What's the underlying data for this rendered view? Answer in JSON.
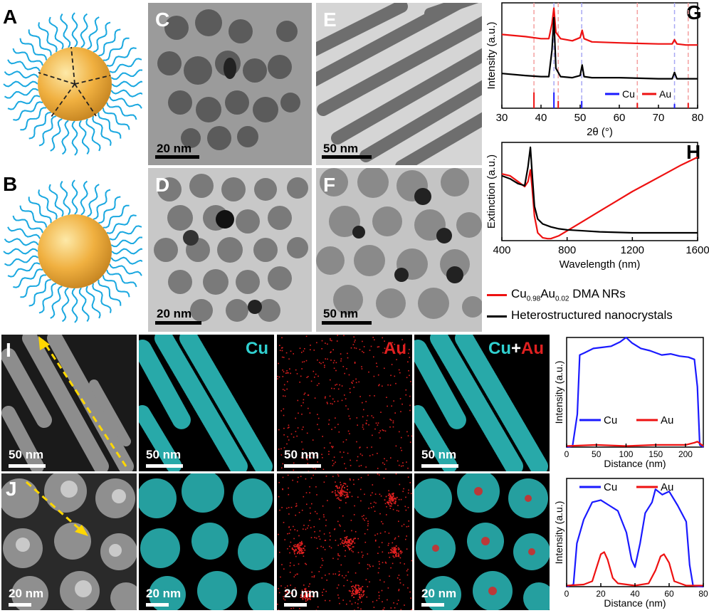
{
  "figure": {
    "panels": {
      "A": "A",
      "B": "B",
      "C": "C",
      "D": "D",
      "E": "E",
      "F": "F",
      "G": "G",
      "H": "H",
      "I": "I",
      "J": "J"
    },
    "scalebars": {
      "C": "20 nm",
      "D": "20 nm",
      "E": "50 nm",
      "F": "50 nm",
      "I1": "50 nm",
      "I2": "50 nm",
      "I3": "50 nm",
      "I4": "50 nm",
      "J1": "20 nm",
      "J2": "20 nm",
      "J3": "20 nm",
      "J4": "20 nm"
    },
    "map_labels": {
      "cu": "Cu",
      "au": "Au",
      "plus": "+"
    },
    "legend_bottom": {
      "red_sub_base": "Cu",
      "red_sub1": "0.98",
      "red_mid": "Au",
      "red_sub2": "0.02",
      "red_suffix": " DMA NRs",
      "black": "Heterostructured nanocrystals"
    },
    "colors": {
      "cu": "#1a1aff",
      "au": "#ee1111",
      "cu_map": "#30d0d0",
      "au_map": "#e02020",
      "particle": "#f2b040",
      "ligand": "#1aa8e0"
    }
  },
  "chart_data": [
    {
      "id": "G",
      "type": "line",
      "xlabel": "2θ (°)",
      "ylabel": "Intensity (a.u.)",
      "xlim": [
        30,
        80
      ],
      "xticks": [
        30,
        40,
        50,
        60,
        70,
        80
      ],
      "legend": [
        "Cu",
        "Au"
      ],
      "legend_position": "bottom-right",
      "series": [
        {
          "name": "red pattern",
          "color": "#ee1111",
          "x": [
            30,
            36,
            40,
            42,
            42.8,
            43.3,
            43.8,
            45,
            48,
            50,
            50.5,
            51,
            53,
            60,
            70,
            73.5,
            74.1,
            74.7,
            77,
            80
          ],
          "y": [
            0.7,
            0.68,
            0.66,
            0.66,
            0.8,
            0.95,
            0.72,
            0.66,
            0.64,
            0.67,
            0.74,
            0.66,
            0.63,
            0.62,
            0.61,
            0.61,
            0.65,
            0.61,
            0.6,
            0.6
          ]
        },
        {
          "name": "black pattern",
          "color": "#000000",
          "x": [
            30,
            36,
            40,
            42,
            42.8,
            43.3,
            43.8,
            45,
            48,
            50,
            50.5,
            51,
            53,
            60,
            70,
            73.5,
            74.1,
            74.7,
            77,
            80
          ],
          "y": [
            0.33,
            0.31,
            0.3,
            0.3,
            0.55,
            0.86,
            0.38,
            0.3,
            0.29,
            0.31,
            0.41,
            0.3,
            0.29,
            0.29,
            0.28,
            0.28,
            0.34,
            0.28,
            0.28,
            0.28
          ]
        }
      ],
      "reference_cu": [
        43.3,
        50.4,
        74.1
      ],
      "reference_au": [
        38.2,
        44.4,
        64.6,
        77.6
      ],
      "reference_cu_heights": [
        0.15,
        0.07,
        0.04
      ],
      "reference_au_heights": [
        0.15,
        0.07,
        0.05,
        0.05
      ]
    },
    {
      "id": "H",
      "type": "line",
      "xlabel": "Wavelength (nm)",
      "ylabel": "Extinction (a.u.)",
      "xlim": [
        400,
        1600
      ],
      "xticks": [
        400,
        800,
        1200,
        1600
      ],
      "series": [
        {
          "name": "Cu0.98Au0.02 DMA NRs",
          "color": "#ee1111",
          "x": [
            400,
            450,
            500,
            540,
            560,
            575,
            585,
            600,
            620,
            650,
            680,
            700,
            750,
            800,
            900,
            1000,
            1100,
            1200,
            1300,
            1400,
            1500,
            1600
          ],
          "y": [
            0.68,
            0.66,
            0.6,
            0.55,
            0.6,
            0.72,
            0.55,
            0.25,
            0.08,
            0.03,
            0.02,
            0.02,
            0.05,
            0.1,
            0.2,
            0.3,
            0.4,
            0.5,
            0.59,
            0.68,
            0.77,
            0.85
          ]
        },
        {
          "name": "Heterostructured nanocrystals",
          "color": "#000000",
          "x": [
            400,
            450,
            500,
            540,
            560,
            575,
            585,
            600,
            620,
            650,
            700,
            750,
            800,
            900,
            1000,
            1200,
            1400,
            1600
          ],
          "y": [
            0.66,
            0.63,
            0.58,
            0.56,
            0.75,
            0.95,
            0.7,
            0.35,
            0.22,
            0.17,
            0.14,
            0.12,
            0.11,
            0.1,
            0.09,
            0.08,
            0.08,
            0.08
          ]
        }
      ]
    },
    {
      "id": "I-profile",
      "type": "line",
      "xlabel": "Distance (nm)",
      "ylabel": "Intensity (a.u.)",
      "xlim": [
        0,
        230
      ],
      "xticks": [
        0,
        50,
        100,
        150,
        200
      ],
      "legend": [
        "Cu",
        "Au"
      ],
      "series": [
        {
          "name": "Cu",
          "color": "#1a1aff",
          "x": [
            0,
            10,
            18,
            22,
            30,
            45,
            60,
            75,
            90,
            100,
            110,
            125,
            140,
            160,
            175,
            190,
            205,
            215,
            220,
            224,
            230
          ],
          "y": [
            0,
            0.01,
            0.3,
            0.84,
            0.86,
            0.9,
            0.91,
            0.92,
            0.96,
            1.0,
            0.95,
            0.9,
            0.88,
            0.84,
            0.85,
            0.83,
            0.82,
            0.8,
            0.55,
            0.02,
            0
          ]
        },
        {
          "name": "Au",
          "color": "#ee1111",
          "x": [
            0,
            50,
            100,
            150,
            200,
            215,
            220,
            230
          ],
          "y": [
            0.01,
            0.02,
            0.01,
            0.02,
            0.02,
            0.04,
            0.05,
            0.01
          ]
        }
      ]
    },
    {
      "id": "J-profile",
      "type": "line",
      "xlabel": "Distance (nm)",
      "ylabel": "Intensity (a.u.)",
      "xlim": [
        0,
        80
      ],
      "xticks": [
        0,
        20,
        40,
        60,
        80
      ],
      "legend": [
        "Cu",
        "Au"
      ],
      "series": [
        {
          "name": "Cu",
          "color": "#1a1aff",
          "x": [
            0,
            4,
            6,
            10,
            15,
            20,
            25,
            30,
            35,
            38,
            40,
            43,
            46,
            50,
            52,
            56,
            60,
            65,
            70,
            72,
            74,
            80
          ],
          "y": [
            0,
            0.02,
            0.4,
            0.62,
            0.78,
            0.8,
            0.75,
            0.7,
            0.5,
            0.25,
            0.18,
            0.4,
            0.68,
            0.78,
            0.9,
            0.85,
            0.88,
            0.75,
            0.6,
            0.2,
            0.01,
            0
          ]
        },
        {
          "name": "Au",
          "color": "#ee1111",
          "x": [
            0,
            10,
            15,
            18,
            20,
            22,
            24,
            27,
            30,
            40,
            48,
            52,
            55,
            57,
            60,
            63,
            70,
            80
          ],
          "y": [
            0.01,
            0.02,
            0.05,
            0.2,
            0.3,
            0.32,
            0.25,
            0.08,
            0.03,
            0.01,
            0.03,
            0.15,
            0.28,
            0.3,
            0.22,
            0.05,
            0.01,
            0.01
          ]
        }
      ]
    }
  ]
}
